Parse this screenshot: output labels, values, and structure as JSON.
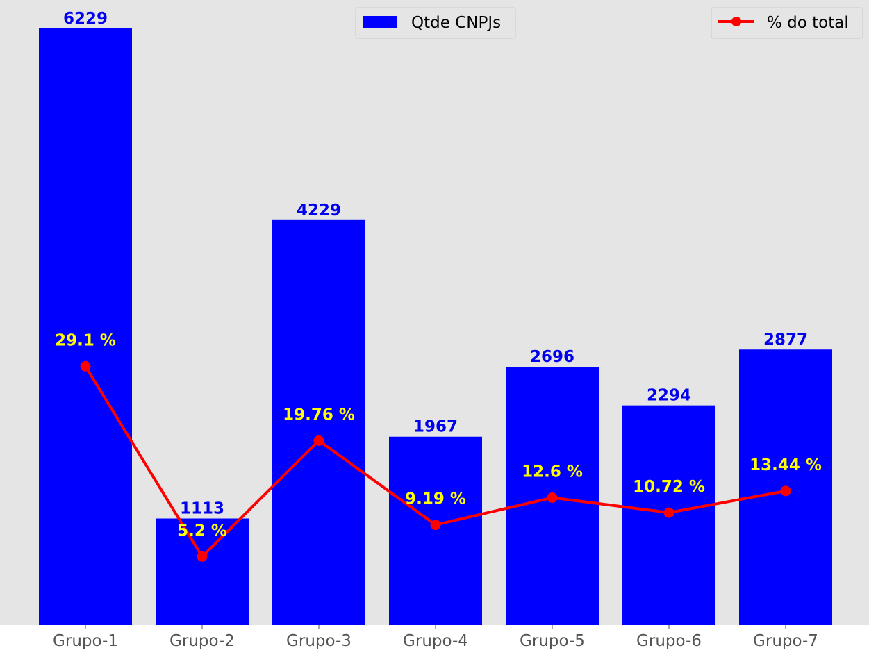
{
  "chart_data": {
    "type": "bar",
    "categories": [
      "Grupo-1",
      "Grupo-2",
      "Grupo-3",
      "Grupo-4",
      "Grupo-5",
      "Grupo-6",
      "Grupo-7"
    ],
    "series": [
      {
        "name": "Qtde CNPJs",
        "type": "bar",
        "color": "#0000ff",
        "values": [
          6229,
          1113,
          4229,
          1967,
          2696,
          2294,
          2877
        ],
        "labels": [
          "6229",
          "1113",
          "4229",
          "1967",
          "2696",
          "2294",
          "2877"
        ],
        "label_color": "#0000ee",
        "axis": "left",
        "ylim": [
          0,
          6229
        ]
      },
      {
        "name": "% do total",
        "type": "line",
        "color": "#ff0000",
        "values": [
          29.1,
          5.2,
          19.76,
          9.19,
          12.6,
          10.72,
          13.44
        ],
        "labels": [
          "29.1 %",
          "5.2 %",
          "19.76 %",
          "9.19 %",
          "12.6 %",
          "10.72 %",
          "13.44 %"
        ],
        "label_color": "#ffff00",
        "axis": "right",
        "ylim": [
          -3.4,
          71.5
        ]
      }
    ],
    "title": "",
    "xlabel": "",
    "ylabel": "",
    "grid": false,
    "background_color": "#e5e5e5",
    "legends": [
      {
        "series": "Qtde CNPJs",
        "placement": "top-center"
      },
      {
        "series": "% do total",
        "placement": "top-right"
      }
    ]
  }
}
